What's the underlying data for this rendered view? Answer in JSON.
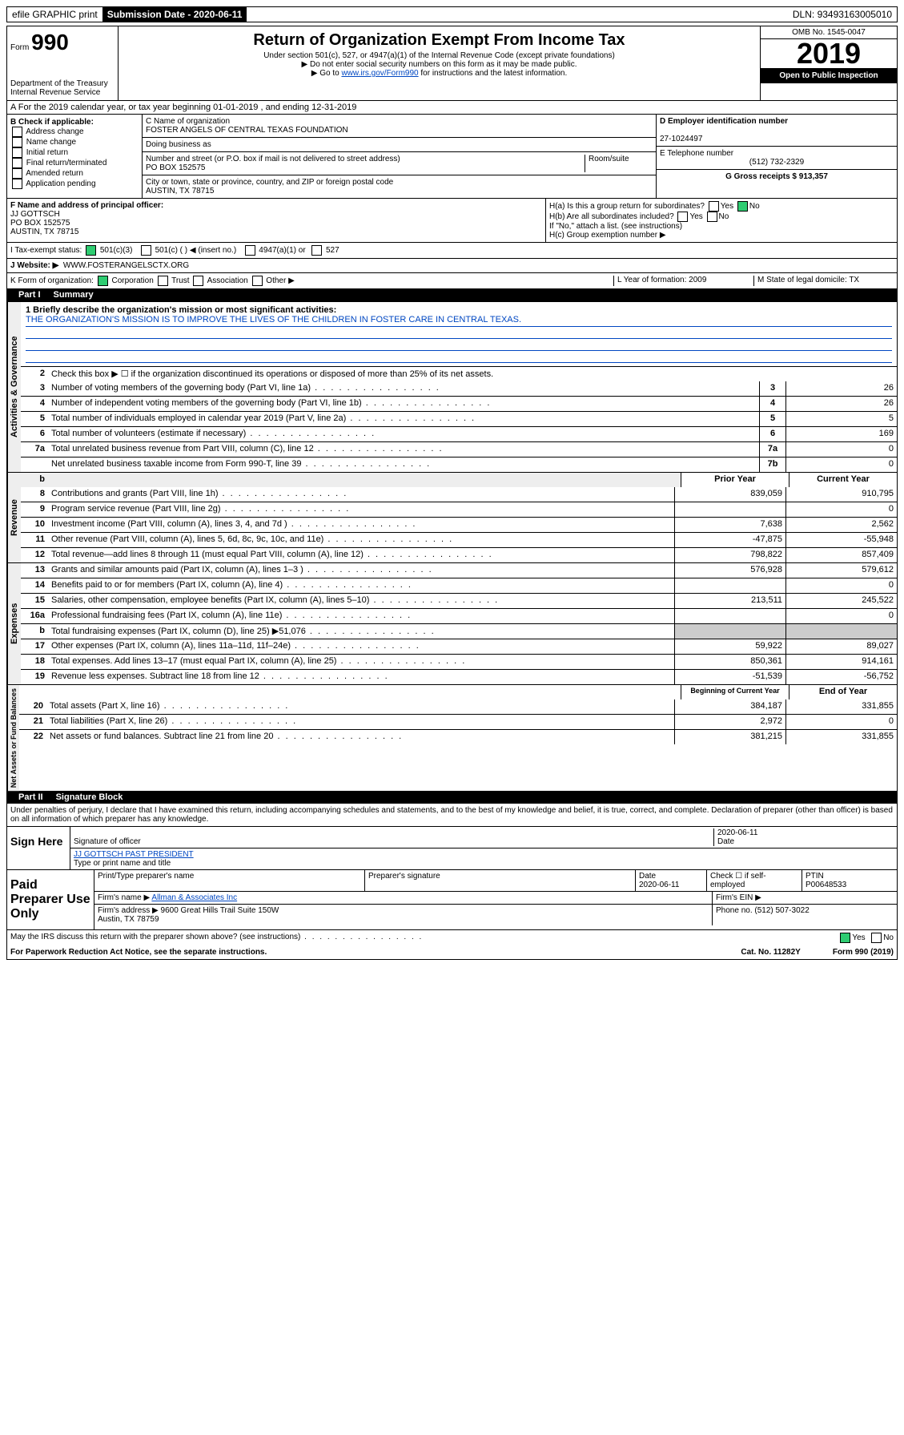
{
  "header_bar": {
    "efile": "efile GRAPHIC print",
    "submission_label": "Submission Date - 2020-06-11",
    "dln": "DLN: 93493163005010"
  },
  "title_block": {
    "form_label": "Form",
    "form_number": "990",
    "dept": "Department of the Treasury\nInternal Revenue Service",
    "title": "Return of Organization Exempt From Income Tax",
    "subtitle": "Under section 501(c), 527, or 4947(a)(1) of the Internal Revenue Code (except private foundations)",
    "note1": "▶ Do not enter social security numbers on this form as it may be made public.",
    "note2_prefix": "▶ Go to ",
    "note2_link": "www.irs.gov/Form990",
    "note2_suffix": " for instructions and the latest information.",
    "omb": "OMB No. 1545-0047",
    "year": "2019",
    "open": "Open to Public Inspection"
  },
  "a": {
    "text": "A For the 2019 calendar year, or tax year beginning 01-01-2019    , and ending 12-31-2019"
  },
  "b": {
    "label": "B Check if applicable:",
    "items": [
      "Address change",
      "Name change",
      "Initial return",
      "Final return/terminated",
      "Amended return",
      "Application pending"
    ]
  },
  "c": {
    "name_label": "C Name of organization",
    "name": "FOSTER ANGELS OF CENTRAL TEXAS FOUNDATION",
    "dba_label": "Doing business as",
    "dba": "",
    "street_label": "Number and street (or P.O. box if mail is not delivered to street address)",
    "room_label": "Room/suite",
    "street": "PO BOX 152575",
    "city_label": "City or town, state or province, country, and ZIP or foreign postal code",
    "city": "AUSTIN, TX  78715"
  },
  "d": {
    "label": "D Employer identification number",
    "value": "27-1024497"
  },
  "e": {
    "label": "E Telephone number",
    "value": "(512) 732-2329"
  },
  "g": {
    "label": "G Gross receipts $ 913,357"
  },
  "f": {
    "label": "F  Name and address of principal officer:",
    "name": "JJ GOTTSCH",
    "addr1": "PO BOX 152575",
    "addr2": "AUSTIN, TX  78715"
  },
  "h": {
    "a": "H(a)  Is this a group return for subordinates?",
    "a_yes": "Yes",
    "a_no": "No",
    "b": "H(b)  Are all subordinates included?",
    "b_yes": "Yes",
    "b_no": "No",
    "b_note": "If \"No,\" attach a list. (see instructions)",
    "c": "H(c)  Group exemption number ▶"
  },
  "i": {
    "label": "I    Tax-exempt status:",
    "c3": "501(c)(3)",
    "c": "501(c) (  ) ◀ (insert no.)",
    "a1": "4947(a)(1) or",
    "527": "527"
  },
  "j": {
    "label": "J   Website: ▶",
    "value": "WWW.FOSTERANGELSCTX.ORG"
  },
  "k": {
    "label": "K Form of organization:",
    "corp": "Corporation",
    "trust": "Trust",
    "assoc": "Association",
    "other": "Other ▶"
  },
  "l": {
    "label": "L Year of formation: 2009"
  },
  "m": {
    "label": "M State of legal domicile: TX"
  },
  "part1": {
    "title": "Part I",
    "heading": "Summary",
    "tab": "Activities & Governance",
    "line1_label": "1  Briefly describe the organization's mission or most significant activities:",
    "mission": "THE ORGANIZATION'S MISSION IS TO IMPROVE THE LIVES OF THE CHILDREN IN FOSTER CARE IN CENTRAL TEXAS.",
    "line2": "Check this box ▶ ☐  if the organization discontinued its operations or disposed of more than 25% of its net assets.",
    "rows": [
      {
        "n": "3",
        "label": "Number of voting members of the governing body (Part VI, line 1a)",
        "cell": "3",
        "val": "26"
      },
      {
        "n": "4",
        "label": "Number of independent voting members of the governing body (Part VI, line 1b)",
        "cell": "4",
        "val": "26"
      },
      {
        "n": "5",
        "label": "Total number of individuals employed in calendar year 2019 (Part V, line 2a)",
        "cell": "5",
        "val": "5"
      },
      {
        "n": "6",
        "label": "Total number of volunteers (estimate if necessary)",
        "cell": "6",
        "val": "169"
      },
      {
        "n": "7a",
        "label": "Total unrelated business revenue from Part VIII, column (C), line 12",
        "cell": "7a",
        "val": "0"
      },
      {
        "n": "",
        "label": "Net unrelated business taxable income from Form 990-T, line 39",
        "cell": "7b",
        "val": "0"
      }
    ]
  },
  "revenue": {
    "tab": "Revenue",
    "h1": "Prior Year",
    "h2": "Current Year",
    "rows": [
      {
        "n": "8",
        "label": "Contributions and grants (Part VIII, line 1h)",
        "py": "839,059",
        "cy": "910,795"
      },
      {
        "n": "9",
        "label": "Program service revenue (Part VIII, line 2g)",
        "py": "",
        "cy": "0"
      },
      {
        "n": "10",
        "label": "Investment income (Part VIII, column (A), lines 3, 4, and 7d )",
        "py": "7,638",
        "cy": "2,562"
      },
      {
        "n": "11",
        "label": "Other revenue (Part VIII, column (A), lines 5, 6d, 8c, 9c, 10c, and 11e)",
        "py": "-47,875",
        "cy": "-55,948"
      },
      {
        "n": "12",
        "label": "Total revenue—add lines 8 through 11 (must equal Part VIII, column (A), line 12)",
        "py": "798,822",
        "cy": "857,409"
      }
    ]
  },
  "expenses": {
    "tab": "Expenses",
    "rows": [
      {
        "n": "13",
        "label": "Grants and similar amounts paid (Part IX, column (A), lines 1–3 )",
        "py": "576,928",
        "cy": "579,612"
      },
      {
        "n": "14",
        "label": "Benefits paid to or for members (Part IX, column (A), line 4)",
        "py": "",
        "cy": "0"
      },
      {
        "n": "15",
        "label": "Salaries, other compensation, employee benefits (Part IX, column (A), lines 5–10)",
        "py": "213,511",
        "cy": "245,522"
      },
      {
        "n": "16a",
        "label": "Professional fundraising fees (Part IX, column (A), line 11e)",
        "py": "",
        "cy": "0"
      },
      {
        "n": "b",
        "label": "Total fundraising expenses (Part IX, column (D), line 25) ▶51,076",
        "py": "blk",
        "cy": "blk"
      },
      {
        "n": "17",
        "label": "Other expenses (Part IX, column (A), lines 11a–11d, 11f–24e)",
        "py": "59,922",
        "cy": "89,027"
      },
      {
        "n": "18",
        "label": "Total expenses. Add lines 13–17 (must equal Part IX, column (A), line 25)",
        "py": "850,361",
        "cy": "914,161"
      },
      {
        "n": "19",
        "label": "Revenue less expenses. Subtract line 18 from line 12",
        "py": "-51,539",
        "cy": "-56,752"
      }
    ]
  },
  "netassets": {
    "tab": "Net Assets or Fund Balances",
    "h1": "Beginning of Current Year",
    "h2": "End of Year",
    "rows": [
      {
        "n": "20",
        "label": "Total assets (Part X, line 16)",
        "py": "384,187",
        "cy": "331,855"
      },
      {
        "n": "21",
        "label": "Total liabilities (Part X, line 26)",
        "py": "2,972",
        "cy": "0"
      },
      {
        "n": "22",
        "label": "Net assets or fund balances. Subtract line 21 from line 20",
        "py": "381,215",
        "cy": "331,855"
      }
    ]
  },
  "part2": {
    "title": "Part II",
    "heading": "Signature Block",
    "jurat": "Under penalties of perjury, I declare that I have examined this return, including accompanying schedules and statements, and to the best of my knowledge and belief, it is true, correct, and complete. Declaration of preparer (other than officer) is based on all information of which preparer has any knowledge."
  },
  "sign": {
    "left": "Sign Here",
    "sig_label": "Signature of officer",
    "date": "2020-06-11",
    "date_label": "Date",
    "name": "JJ GOTTSCH PAST PRESIDENT",
    "name_label": "Type or print name and title"
  },
  "paid": {
    "left": "Paid Preparer Use Only",
    "h_print": "Print/Type preparer's name",
    "h_sig": "Preparer's signature",
    "h_date": "Date",
    "date": "2020-06-11",
    "h_check": "Check ☐ if self-employed",
    "h_ptin": "PTIN",
    "ptin": "P00648533",
    "firm_label": "Firm's name   ▶",
    "firm": "Allman & Associates Inc",
    "ein_label": "Firm's EIN ▶",
    "addr_label": "Firm's address ▶",
    "addr": "9600 Great Hills Trail Suite 150W\nAustin, TX  78759",
    "phone_label": "Phone no. (512) 507-3022"
  },
  "footer": {
    "discuss": "May the IRS discuss this return with the preparer shown above? (see instructions)",
    "yes": "Yes",
    "no": "No",
    "pra": "For Paperwork Reduction Act Notice, see the separate instructions.",
    "cat": "Cat. No. 11282Y",
    "form": "Form 990 (2019)"
  }
}
